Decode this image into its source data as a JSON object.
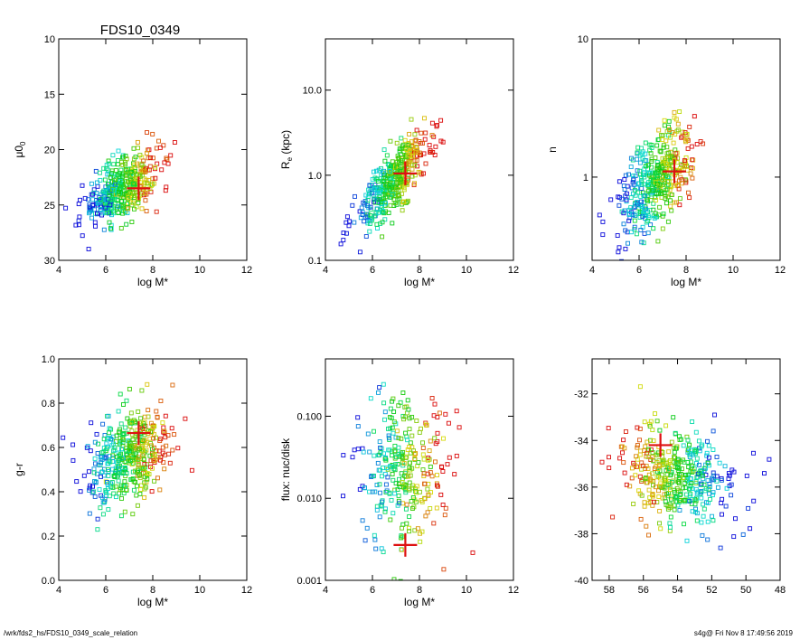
{
  "figure": {
    "title": "FDS10_0349",
    "footer_left": "/wrk/fds2_hs/FDS10_0349_scale_relation",
    "footer_right": "s4g@  Fri Nov  8 17:49:56 2019"
  },
  "colors": {
    "marker": "#dd1111",
    "axis": "#000000"
  },
  "chart_data": [
    {
      "type": "scatter",
      "xlabel": "log M*",
      "ylabel": "μ0",
      "ylabel_sub": "0",
      "xlim": [
        4,
        12
      ],
      "ylim": [
        30,
        10
      ],
      "yscale": "linear",
      "xticks": [
        4,
        6,
        8,
        10,
        12
      ],
      "xtick_labels": [
        "4",
        "6",
        "8",
        "10",
        "12"
      ],
      "yticks": [
        10,
        15,
        20,
        25,
        30
      ],
      "ytick_labels": [
        "10",
        "15",
        "20",
        "25",
        "30"
      ],
      "cloud": {
        "x_mean": 6.7,
        "x_sd": 0.8,
        "slope": -1.25,
        "intercept": 31.8,
        "scatter": 1.3,
        "n": 420,
        "seed": 11
      },
      "point": {
        "x": 7.4,
        "y": 23.5
      }
    },
    {
      "type": "scatter",
      "xlabel": "log M*",
      "ylabel": "R",
      "ylabel_sub": "e",
      "ylabel_tail": " (kpc)",
      "xlim": [
        4,
        12
      ],
      "ylim": [
        0.1,
        40
      ],
      "yscale": "log",
      "xticks": [
        4,
        6,
        8,
        10,
        12
      ],
      "xtick_labels": [
        "4",
        "6",
        "8",
        "10",
        "12"
      ],
      "yticks": [
        0.1,
        1.0,
        10.0
      ],
      "ytick_labels": [
        "0.1",
        "1.0",
        "10.0"
      ],
      "cloud": {
        "x_mean": 6.8,
        "x_sd": 0.8,
        "slope": 0.27,
        "intercept": -1.95,
        "scatter": 0.17,
        "n": 420,
        "seed": 23
      },
      "point": {
        "x": 7.4,
        "y": 1.05
      }
    },
    {
      "type": "scatter",
      "xlabel": "log M*",
      "ylabel": "n",
      "xlim": [
        4,
        12
      ],
      "ylim": [
        0.25,
        10
      ],
      "yscale": "log",
      "xticks": [
        4,
        6,
        8,
        10,
        12
      ],
      "xtick_labels": [
        "4",
        "6",
        "8",
        "10",
        "12"
      ],
      "yticks": [
        1,
        10
      ],
      "ytick_labels": [
        "1",
        "10"
      ],
      "cloud": {
        "x_mean": 6.8,
        "x_sd": 0.8,
        "slope": 0.13,
        "intercept": -0.9,
        "scatter": 0.16,
        "n": 420,
        "seed": 37
      },
      "point": {
        "x": 7.5,
        "y": 1.1
      }
    },
    {
      "type": "scatter",
      "xlabel": "log M*",
      "ylabel": "g-r",
      "xlim": [
        4,
        12
      ],
      "ylim": [
        0.0,
        1.0
      ],
      "yscale": "linear",
      "xticks": [
        4,
        6,
        8,
        10,
        12
      ],
      "xtick_labels": [
        "4",
        "6",
        "8",
        "10",
        "12"
      ],
      "yticks": [
        0.0,
        0.2,
        0.4,
        0.6,
        0.8,
        1.0
      ],
      "ytick_labels": [
        "0.0",
        "0.2",
        "0.4",
        "0.6",
        "0.8",
        "1.0"
      ],
      "cloud": {
        "x_mean": 6.9,
        "x_sd": 0.9,
        "slope": 0.05,
        "intercept": 0.22,
        "scatter": 0.11,
        "n": 420,
        "seed": 51
      },
      "point": {
        "x": 7.4,
        "y": 0.665
      }
    },
    {
      "type": "scatter",
      "xlabel": "log M*",
      "ylabel": "flux: nuc/disk",
      "xlim": [
        4,
        12
      ],
      "ylim": [
        0.001,
        0.5
      ],
      "yscale": "log",
      "xticks": [
        4,
        6,
        8,
        10,
        12
      ],
      "xtick_labels": [
        "4",
        "6",
        "8",
        "10",
        "12"
      ],
      "yticks": [
        0.001,
        0.01,
        0.1
      ],
      "ytick_labels": [
        "0.001",
        "0.010",
        "0.100"
      ],
      "cloud": {
        "x_mean": 7.2,
        "x_sd": 0.9,
        "slope": 0.0,
        "intercept": -1.7,
        "scatter": 0.45,
        "n": 300,
        "seed": 67
      },
      "point": {
        "x": 7.4,
        "y": 0.0027
      }
    },
    {
      "type": "scatter",
      "xlabel": "",
      "ylabel": "",
      "xlim": [
        59,
        48
      ],
      "ylim": [
        -40,
        -30.5
      ],
      "yscale": "linear",
      "xticks": [
        58,
        56,
        54,
        52,
        50,
        48
      ],
      "xtick_labels": [
        "58",
        "56",
        "54",
        "52",
        "50",
        "48"
      ],
      "yticks": [
        -40,
        -38,
        -36,
        -34,
        -32
      ],
      "ytick_labels": [
        "-40",
        "-38",
        "-36",
        "-34",
        "-32"
      ],
      "cloud": {
        "x_mean": 54,
        "x_sd": 1.6,
        "slope": 0.12,
        "intercept": -42.0,
        "scatter": 1.05,
        "n": 420,
        "seed": 83
      },
      "point": {
        "x": 55.0,
        "y": -34.2
      }
    }
  ]
}
